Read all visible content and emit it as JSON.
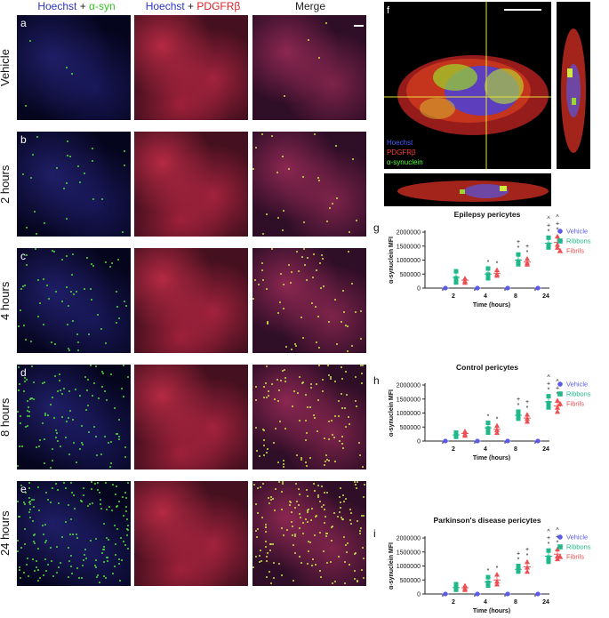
{
  "column_headers": {
    "col1": {
      "stain1": "Hoechst",
      "plus": " + ",
      "stain2": "α-syn"
    },
    "col2": {
      "stain1": "Hoechst",
      "plus": " + ",
      "stain2": "PDGFRβ"
    },
    "col3": {
      "label": "Merge"
    }
  },
  "rows": [
    {
      "letter": "a",
      "label": "Vehicle"
    },
    {
      "letter": "b",
      "label": "2 hours"
    },
    {
      "letter": "c",
      "label": "4 hours"
    },
    {
      "letter": "d",
      "label": "8 hours"
    },
    {
      "letter": "e",
      "label": "24 hours"
    }
  ],
  "panel_f": {
    "letter": "f",
    "legend": [
      "Hoechst",
      "PDGFRβ",
      "α-synuclein"
    ],
    "legend_colors": [
      "#3c46ff",
      "#ff3030",
      "#58ff34"
    ]
  },
  "colors": {
    "vehicle": "#5b5be8",
    "ribbons": "#1fb88a",
    "fibrils": "#ee4f52"
  },
  "chart_data": [
    {
      "letter": "g",
      "type": "scatter",
      "title": "Epilepsy pericytes",
      "xlabel": "Time (hours)",
      "ylabel": "α-synuclein MFI",
      "categories": [
        "2",
        "4",
        "8",
        "24"
      ],
      "yticks": [
        "0",
        "500000",
        "1000000",
        "1500000",
        "2000000"
      ],
      "ylim": [
        0,
        2000000
      ],
      "series": [
        {
          "name": "Vehicle",
          "shape": "circle",
          "values": [
            [
              0,
              0,
              0
            ],
            [
              0,
              0,
              0
            ],
            [
              0,
              0,
              0
            ],
            [
              0,
              0,
              0
            ]
          ],
          "means": [
            0,
            0,
            0,
            0
          ]
        },
        {
          "name": "Ribbons",
          "shape": "square",
          "values": [
            [
              600000,
              350000,
              200000
            ],
            [
              700000,
              480000,
              350000
            ],
            [
              1200000,
              950000,
              850000
            ],
            [
              1800000,
              1550000,
              1450000
            ]
          ],
          "means": [
            380000,
            500000,
            1000000,
            1600000
          ]
        },
        {
          "name": "Fibrils",
          "shape": "triangle",
          "values": [
            [
              350000,
              250000,
              200000
            ],
            [
              650000,
              500000,
              450000
            ],
            [
              1050000,
              900000,
              850000
            ],
            [
              1850000,
              1550000,
              1450000
            ]
          ],
          "means": [
            280000,
            530000,
            930000,
            1630000
          ]
        }
      ],
      "annotations": [
        {
          "cat": 1,
          "marks": [
            "*"
          ]
        },
        {
          "cat": 2,
          "marks": [
            "*",
            "+"
          ]
        },
        {
          "cat": 3,
          "marks": [
            "*",
            "+",
            "^"
          ]
        }
      ]
    },
    {
      "letter": "h",
      "type": "scatter",
      "title": "Control pericytes",
      "xlabel": "Time (hours)",
      "ylabel": "α-synuclein MFI",
      "categories": [
        "2",
        "4",
        "8",
        "24"
      ],
      "yticks": [
        "0",
        "500000",
        "1000000",
        "1500000",
        "2000000"
      ],
      "ylim": [
        0,
        2000000
      ],
      "series": [
        {
          "name": "Vehicle",
          "shape": "circle",
          "values": [
            [
              0,
              0,
              0
            ],
            [
              0,
              0,
              0
            ],
            [
              0,
              0,
              0
            ],
            [
              0,
              0,
              0
            ]
          ],
          "means": [
            0,
            0,
            0,
            0
          ]
        },
        {
          "name": "Ribbons",
          "shape": "square",
          "values": [
            [
              300000,
              200000,
              150000
            ],
            [
              650000,
              450000,
              300000
            ],
            [
              1050000,
              900000,
              800000
            ],
            [
              1600000,
              1350000,
              1200000
            ]
          ],
          "means": [
            220000,
            470000,
            920000,
            1400000
          ]
        },
        {
          "name": "Fibrils",
          "shape": "triangle",
          "values": [
            [
              350000,
              250000,
              200000
            ],
            [
              550000,
              400000,
              300000
            ],
            [
              950000,
              800000,
              700000
            ],
            [
              1450000,
              1200000,
              1050000
            ]
          ],
          "means": [
            270000,
            420000,
            820000,
            1250000
          ]
        }
      ],
      "annotations": [
        {
          "cat": 1,
          "marks": [
            "*"
          ]
        },
        {
          "cat": 2,
          "marks": [
            "*",
            "+"
          ]
        },
        {
          "cat": 3,
          "marks": [
            "*",
            "+",
            "^"
          ]
        }
      ]
    },
    {
      "letter": "i",
      "type": "scatter",
      "title": "Parkinson's disease pericytes",
      "xlabel": "Time (hours)",
      "ylabel": "α-synuclein MFI",
      "categories": [
        "2",
        "4",
        "8",
        "24"
      ],
      "yticks": [
        "0",
        "500000",
        "1000000",
        "1500000",
        "2000000"
      ],
      "ylim": [
        0,
        2000000
      ],
      "series": [
        {
          "name": "Vehicle",
          "shape": "circle",
          "values": [
            [
              0,
              0,
              0
            ],
            [
              0,
              0,
              0
            ],
            [
              0,
              0,
              0
            ],
            [
              0,
              0,
              0
            ]
          ],
          "means": [
            0,
            0,
            0,
            0
          ]
        },
        {
          "name": "Ribbons",
          "shape": "square",
          "values": [
            [
              350000,
              200000,
              150000
            ],
            [
              600000,
              400000,
              300000
            ],
            [
              1000000,
              850000,
              800000
            ],
            [
              1550000,
              1300000,
              1150000
            ]
          ],
          "means": [
            230000,
            430000,
            880000,
            1350000
          ]
        },
        {
          "name": "Fibrils",
          "shape": "triangle",
          "values": [
            [
              300000,
              200000,
              150000
            ],
            [
              700000,
              450000,
              350000
            ],
            [
              1150000,
              950000,
              800000
            ],
            [
              1600000,
              1350000,
              1250000
            ]
          ],
          "means": [
            220000,
            500000,
            970000,
            1420000
          ]
        }
      ],
      "annotations": [
        {
          "cat": 1,
          "marks": [
            "*"
          ]
        },
        {
          "cat": 2,
          "marks": [
            "*",
            "+"
          ]
        },
        {
          "cat": 3,
          "marks": [
            "*",
            "+",
            "^"
          ]
        }
      ]
    }
  ]
}
